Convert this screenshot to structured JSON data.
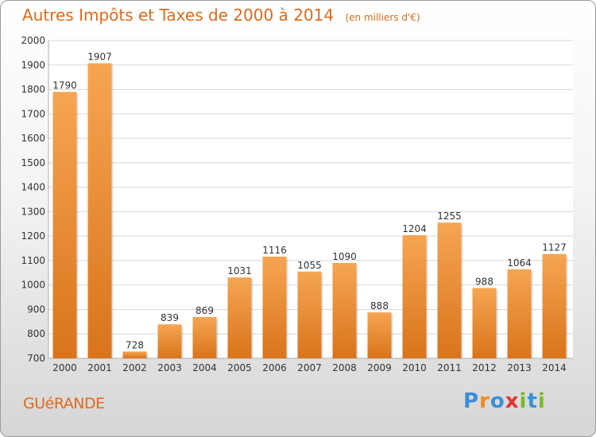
{
  "title": "Autres Impôts et Taxes de 2000 à 2014",
  "unit_note": "(en milliers d'€)",
  "commune": "GUéRANDE",
  "brand": {
    "text": "Proxiti",
    "letters": [
      {
        "ch": "P",
        "color": "#3a8fd6"
      },
      {
        "ch": "r",
        "color": "#f28a1e"
      },
      {
        "ch": "o",
        "color": "#3a8fd6"
      },
      {
        "ch": "x",
        "color": "#e5312f"
      },
      {
        "ch": "i",
        "color": "#7cba2a"
      },
      {
        "ch": "t",
        "color": "#3a8fd6"
      },
      {
        "ch": "i",
        "color": "#7cba2a"
      }
    ]
  },
  "colors": {
    "accent": "#e06a1a",
    "bar_top": "#f6a552",
    "bar_bottom": "#d9741b",
    "grid": "#d8d8d8",
    "axis_text": "#333333"
  },
  "chart_data": {
    "type": "bar",
    "categories": [
      "2000",
      "2001",
      "2002",
      "2003",
      "2004",
      "2005",
      "2006",
      "2007",
      "2008",
      "2009",
      "2010",
      "2011",
      "2012",
      "2013",
      "2014"
    ],
    "values": [
      1790,
      1907,
      728,
      839,
      869,
      1031,
      1116,
      1055,
      1090,
      888,
      1204,
      1255,
      988,
      1064,
      1127
    ],
    "ylim": [
      700,
      2000
    ],
    "yticks": [
      700,
      800,
      900,
      1000,
      1100,
      1200,
      1300,
      1400,
      1500,
      1600,
      1700,
      1800,
      1900,
      2000
    ],
    "grid": true,
    "data_labels": true
  }
}
